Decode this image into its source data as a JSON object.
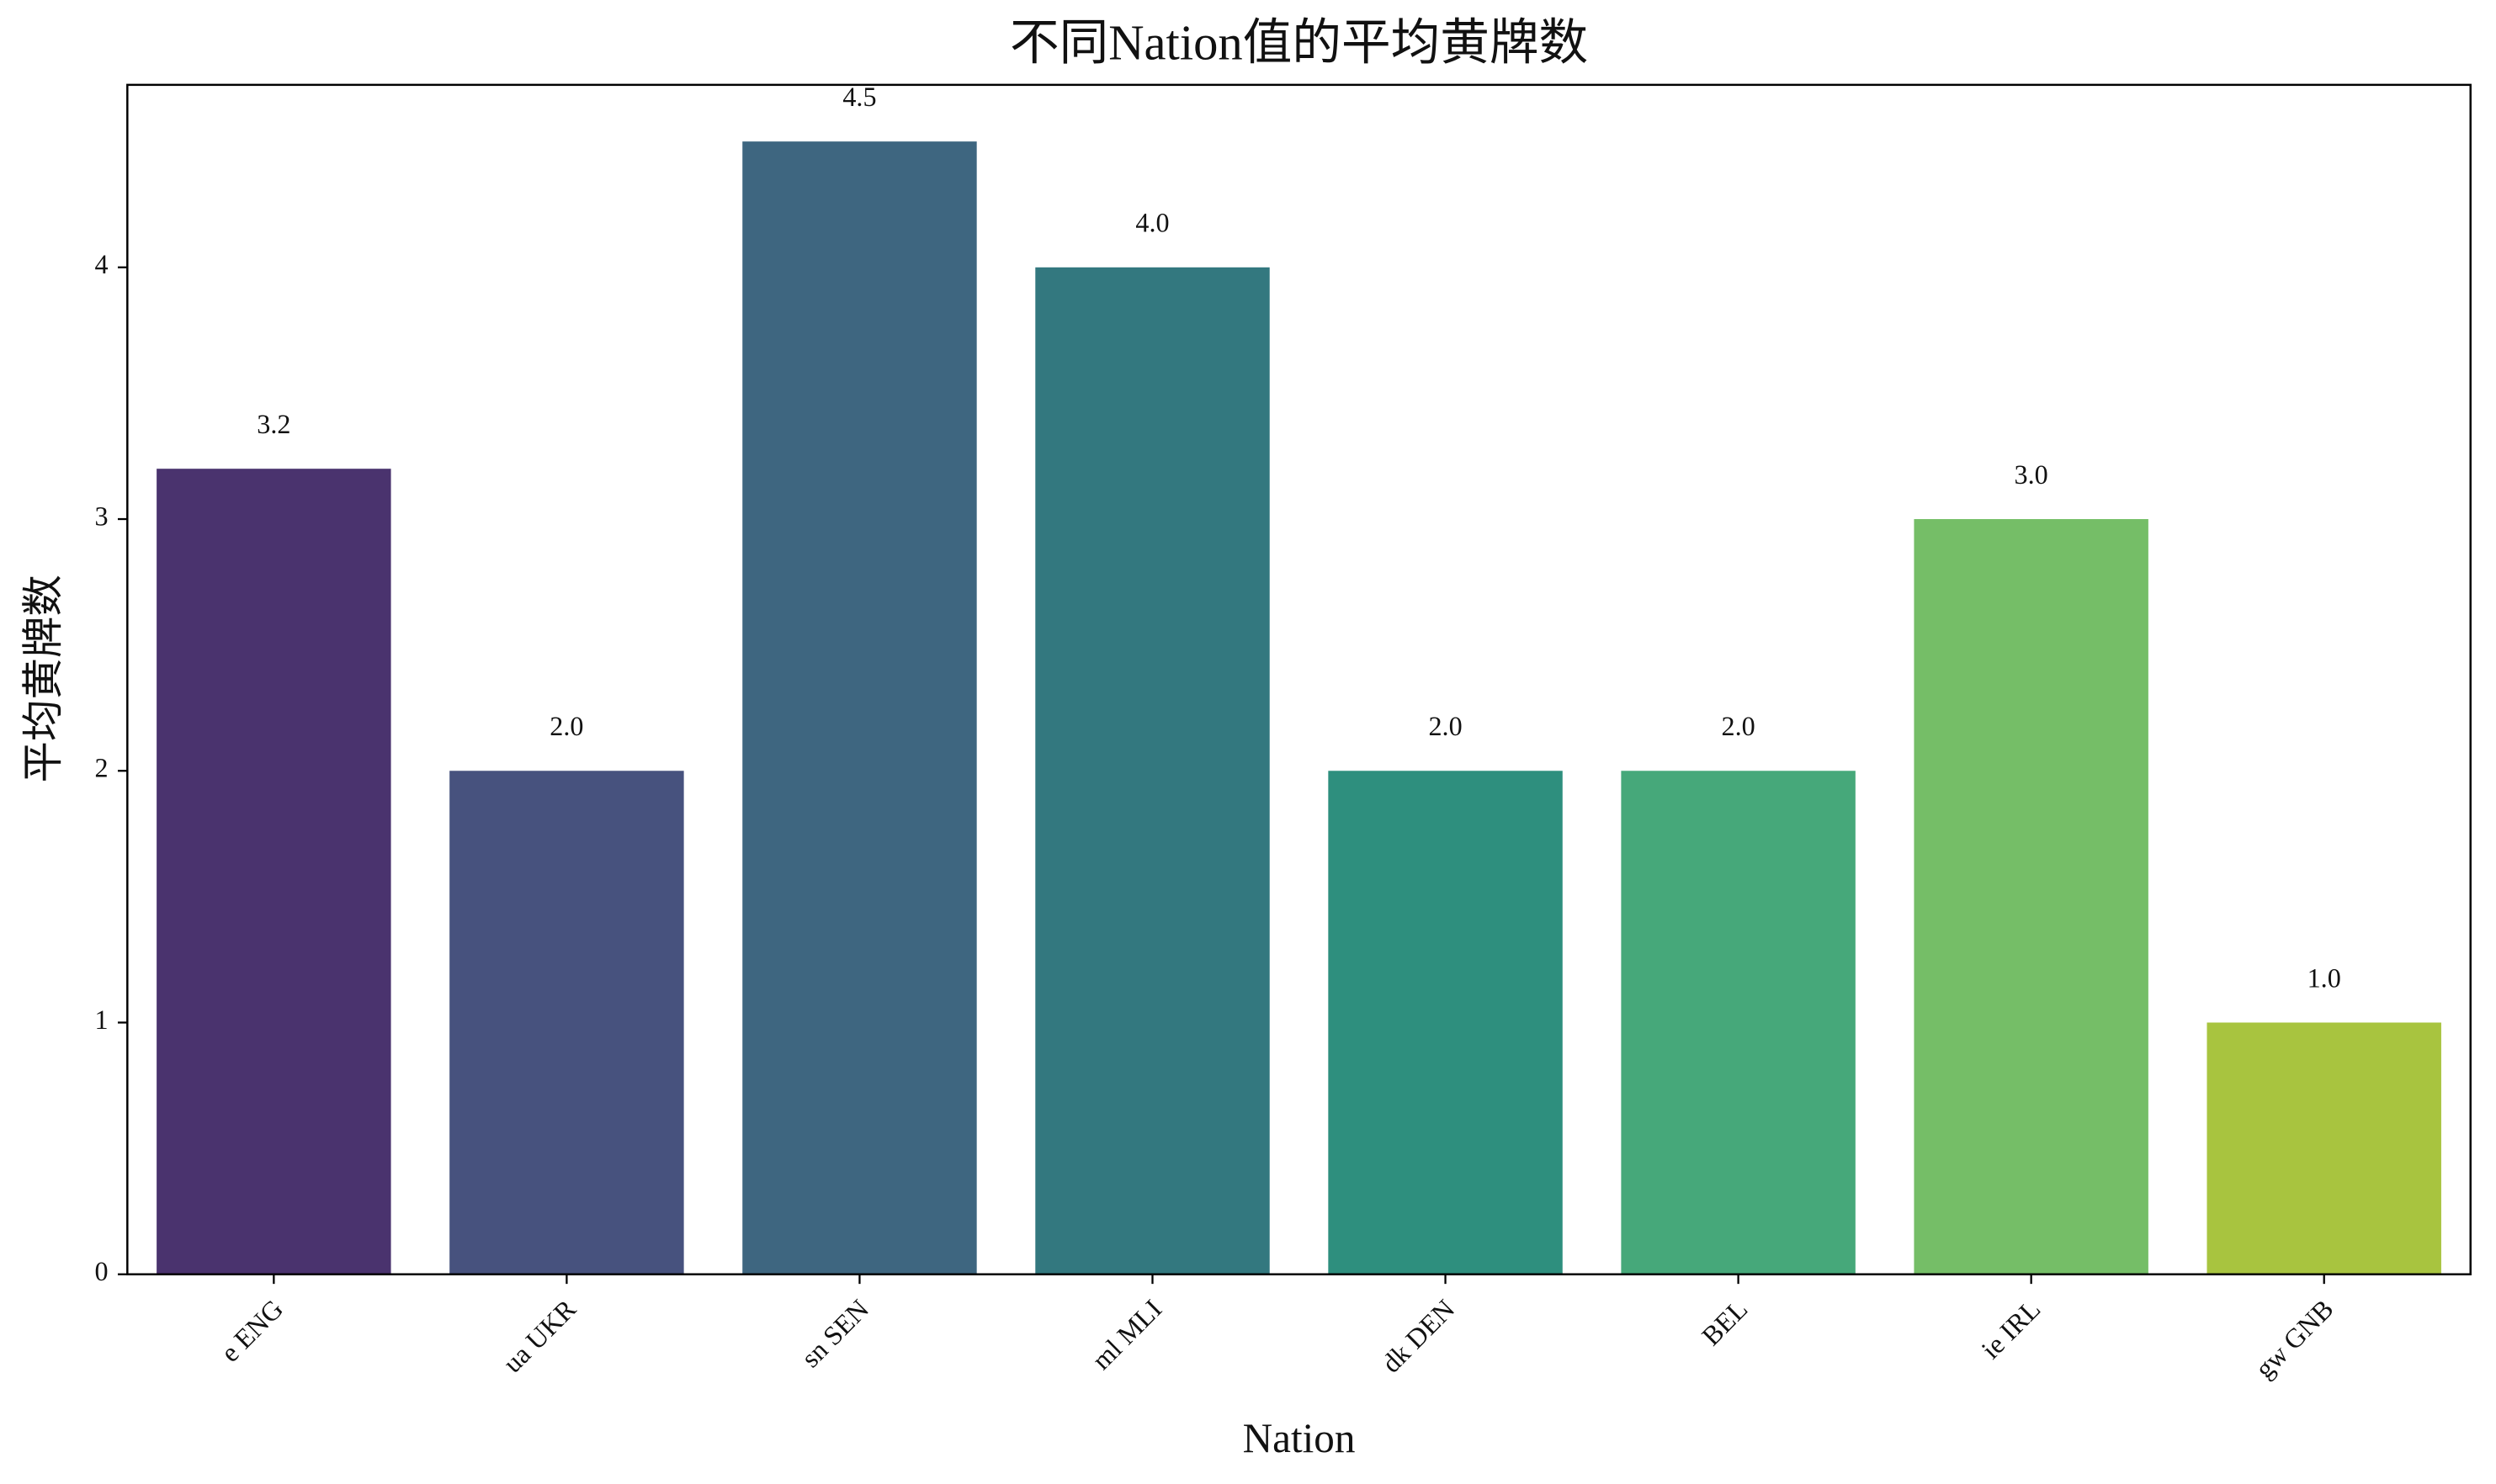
{
  "chart_data": {
    "type": "bar",
    "title": "不同Nation值的平均黄牌数",
    "x_label": "Nation",
    "y_label": "平均黄牌数",
    "categories": [
      "e ENG",
      "ua UKR",
      "sn SEN",
      "ml MLI",
      "dk DEN",
      "BEL",
      "ie IRL",
      "gw GNB"
    ],
    "values": [
      3.2,
      2.0,
      4.5,
      4.0,
      2.0,
      2.0,
      3.0,
      1.0
    ],
    "value_labels": [
      "3.2",
      "2.0",
      "4.5",
      "4.0",
      "2.0",
      "2.0",
      "3.0",
      "1.0"
    ],
    "colors": [
      "#4a336e",
      "#47527e",
      "#3e6680",
      "#33787f",
      "#2e8f7e",
      "#46a87a",
      "#75be67",
      "#a8c43f"
    ],
    "ylim": [
      0,
      4.725
    ],
    "yticks": [
      0,
      1,
      2,
      3,
      4
    ],
    "grid": false
  }
}
